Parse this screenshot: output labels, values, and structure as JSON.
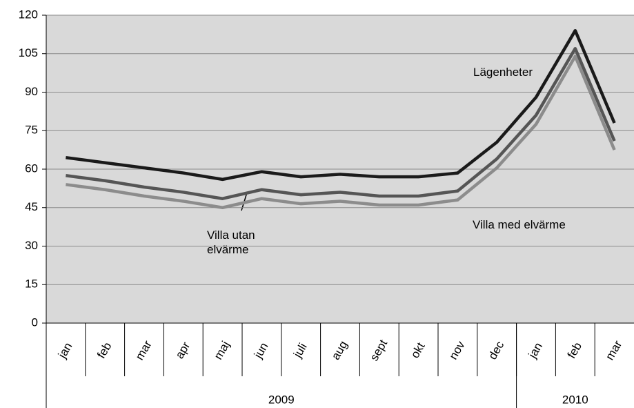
{
  "chart_data": {
    "type": "line",
    "categories": [
      "jan",
      "feb",
      "mar",
      "apr",
      "maj",
      "jun",
      "juli",
      "aug",
      "sept",
      "okt",
      "nov",
      "dec",
      "jan",
      "feb",
      "mar"
    ],
    "groups": [
      {
        "label": "2009",
        "count": 12
      },
      {
        "label": "2010",
        "count": 3
      }
    ],
    "series": [
      {
        "name": "Lägenheter",
        "color": "#1a1a1a",
        "values": [
          64.5,
          62.5,
          60.5,
          58.5,
          56,
          59,
          57,
          58,
          57,
          57,
          58.5,
          70.5,
          88,
          114,
          78
        ]
      },
      {
        "name": "Villa utan elvärme",
        "color": "#555555",
        "values": [
          57.5,
          55.5,
          53,
          51,
          48.5,
          52,
          50,
          51,
          49.5,
          49.5,
          51.5,
          64,
          81,
          107,
          71
        ]
      },
      {
        "name": "Villa med elvärme",
        "color": "#8c8c8c",
        "values": [
          54,
          52,
          49.5,
          47.5,
          45,
          48.5,
          46.5,
          47.5,
          46,
          46,
          48,
          60.5,
          77.5,
          104,
          67.5
        ]
      }
    ],
    "ylim": [
      0,
      120
    ],
    "yticks": [
      0,
      15,
      30,
      45,
      60,
      75,
      90,
      105,
      120
    ],
    "grid": true
  }
}
